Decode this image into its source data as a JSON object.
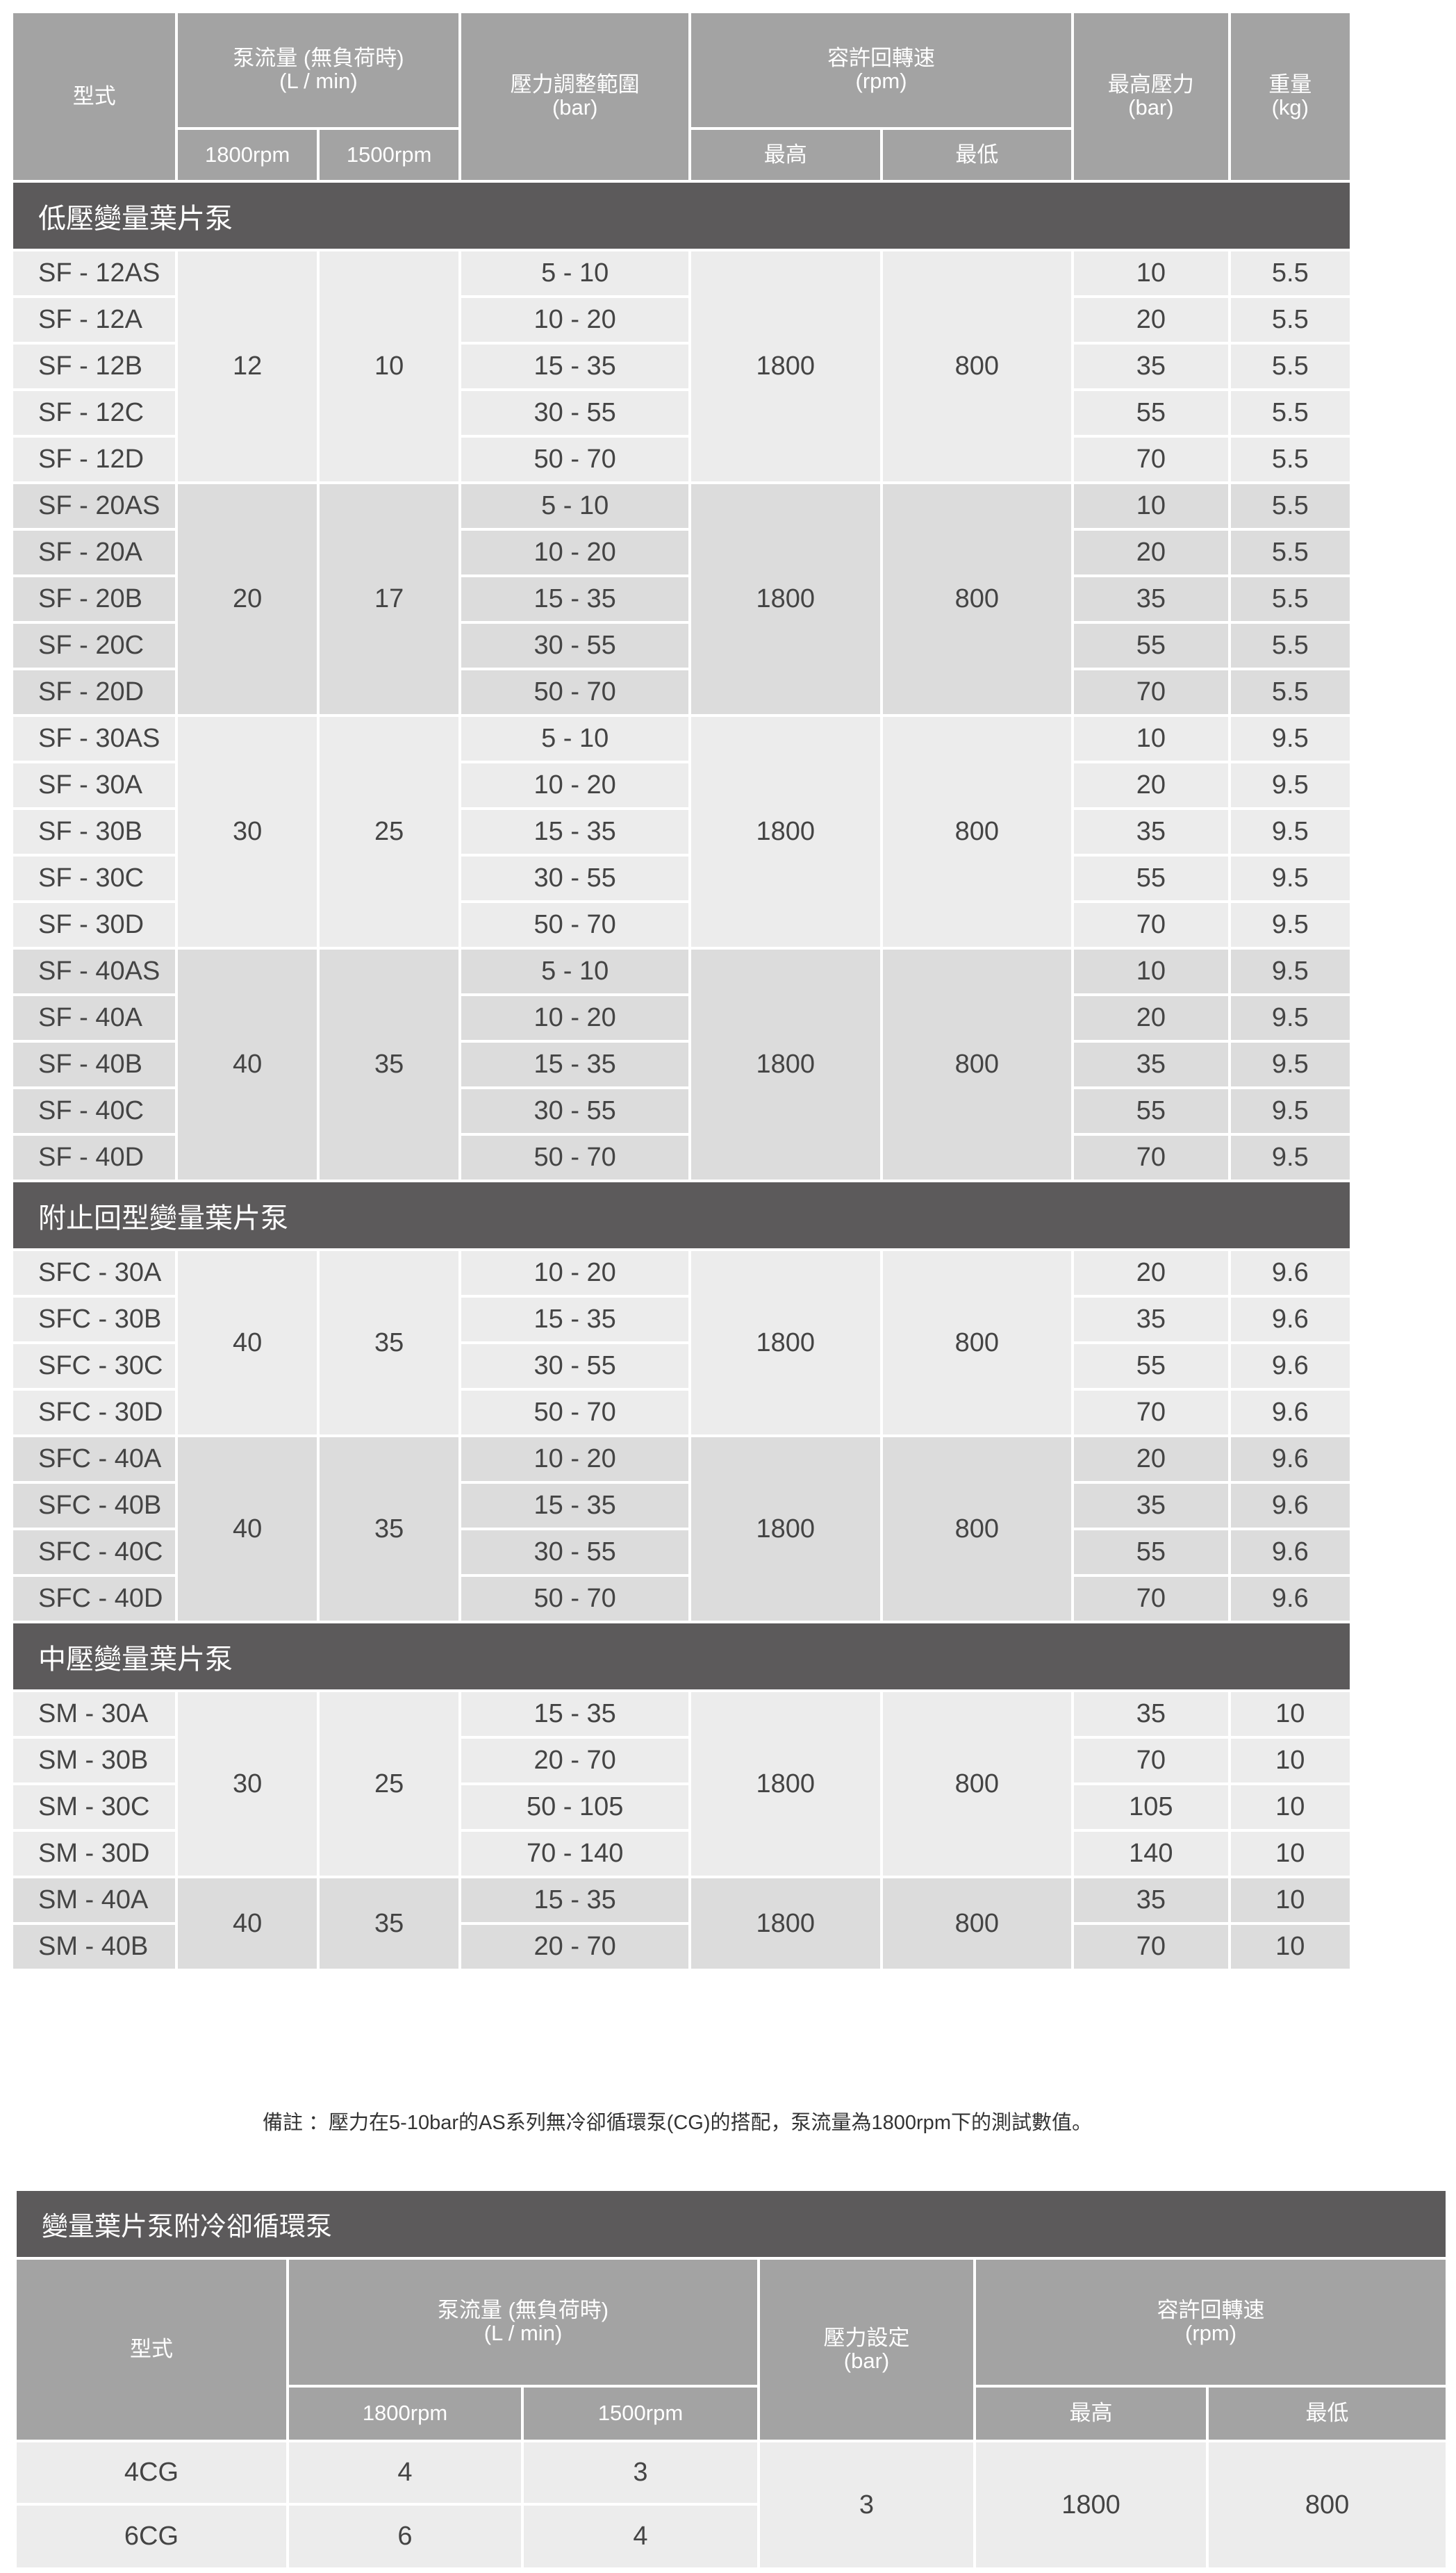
{
  "main_table": {
    "headers": {
      "model": "型式",
      "flow": "泵流量 (無負荷時)\n(L / min)",
      "flow_1800": "1800rpm",
      "flow_1500": "1500rpm",
      "pressure_range": "壓力調整範圍\n(bar)",
      "rpm": "容許回轉速\n(rpm)",
      "rpm_max": "最高",
      "rpm_min": "最低",
      "max_pressure": "最高壓力\n(bar)",
      "weight": "重量\n(kg)"
    },
    "sections": [
      {
        "title": "低壓變量葉片泵",
        "groups": [
          {
            "flow_1800": "12",
            "flow_1500": "10",
            "rpm_max": "1800",
            "rpm_min": "800",
            "rows": [
              {
                "model": "SF - 12AS",
                "range": "5 - 10",
                "max_pressure": "10",
                "weight": "5.5"
              },
              {
                "model": "SF - 12A",
                "range": "10 - 20",
                "max_pressure": "20",
                "weight": "5.5"
              },
              {
                "model": "SF - 12B",
                "range": "15 - 35",
                "max_pressure": "35",
                "weight": "5.5"
              },
              {
                "model": "SF - 12C",
                "range": "30 - 55",
                "max_pressure": "55",
                "weight": "5.5"
              },
              {
                "model": "SF - 12D",
                "range": "50 - 70",
                "max_pressure": "70",
                "weight": "5.5"
              }
            ]
          },
          {
            "flow_1800": "20",
            "flow_1500": "17",
            "rpm_max": "1800",
            "rpm_min": "800",
            "rows": [
              {
                "model": "SF - 20AS",
                "range": "5 - 10",
                "max_pressure": "10",
                "weight": "5.5"
              },
              {
                "model": "SF - 20A",
                "range": "10 - 20",
                "max_pressure": "20",
                "weight": "5.5"
              },
              {
                "model": "SF - 20B",
                "range": "15 - 35",
                "max_pressure": "35",
                "weight": "5.5"
              },
              {
                "model": "SF - 20C",
                "range": "30 - 55",
                "max_pressure": "55",
                "weight": "5.5"
              },
              {
                "model": "SF - 20D",
                "range": "50 - 70",
                "max_pressure": "70",
                "weight": "5.5"
              }
            ]
          },
          {
            "flow_1800": "30",
            "flow_1500": "25",
            "rpm_max": "1800",
            "rpm_min": "800",
            "rows": [
              {
                "model": "SF - 30AS",
                "range": "5 - 10",
                "max_pressure": "10",
                "weight": "9.5"
              },
              {
                "model": "SF - 30A",
                "range": "10 - 20",
                "max_pressure": "20",
                "weight": "9.5"
              },
              {
                "model": "SF - 30B",
                "range": "15 - 35",
                "max_pressure": "35",
                "weight": "9.5"
              },
              {
                "model": "SF - 30C",
                "range": "30 - 55",
                "max_pressure": "55",
                "weight": "9.5"
              },
              {
                "model": "SF - 30D",
                "range": "50 - 70",
                "max_pressure": "70",
                "weight": "9.5"
              }
            ]
          },
          {
            "flow_1800": "40",
            "flow_1500": "35",
            "rpm_max": "1800",
            "rpm_min": "800",
            "rows": [
              {
                "model": "SF - 40AS",
                "range": "5 - 10",
                "max_pressure": "10",
                "weight": "9.5"
              },
              {
                "model": "SF - 40A",
                "range": "10 - 20",
                "max_pressure": "20",
                "weight": "9.5"
              },
              {
                "model": "SF - 40B",
                "range": "15 - 35",
                "max_pressure": "35",
                "weight": "9.5"
              },
              {
                "model": "SF - 40C",
                "range": "30 - 55",
                "max_pressure": "55",
                "weight": "9.5"
              },
              {
                "model": "SF - 40D",
                "range": "50 - 70",
                "max_pressure": "70",
                "weight": "9.5"
              }
            ]
          }
        ]
      },
      {
        "title": "附止回型變量葉片泵",
        "groups": [
          {
            "flow_1800": "40",
            "flow_1500": "35",
            "rpm_max": "1800",
            "rpm_min": "800",
            "rows": [
              {
                "model": "SFC - 30A",
                "range": "10 - 20",
                "max_pressure": "20",
                "weight": "9.6"
              },
              {
                "model": "SFC - 30B",
                "range": "15 - 35",
                "max_pressure": "35",
                "weight": "9.6"
              },
              {
                "model": "SFC - 30C",
                "range": "30 - 55",
                "max_pressure": "55",
                "weight": "9.6"
              },
              {
                "model": "SFC - 30D",
                "range": "50 - 70",
                "max_pressure": "70",
                "weight": "9.6"
              }
            ]
          },
          {
            "flow_1800": "40",
            "flow_1500": "35",
            "rpm_max": "1800",
            "rpm_min": "800",
            "rows": [
              {
                "model": "SFC - 40A",
                "range": "10 - 20",
                "max_pressure": "20",
                "weight": "9.6"
              },
              {
                "model": "SFC - 40B",
                "range": "15 - 35",
                "max_pressure": "35",
                "weight": "9.6"
              },
              {
                "model": "SFC - 40C",
                "range": "30 - 55",
                "max_pressure": "55",
                "weight": "9.6"
              },
              {
                "model": "SFC - 40D",
                "range": "50 - 70",
                "max_pressure": "70",
                "weight": "9.6"
              }
            ]
          }
        ]
      },
      {
        "title": "中壓變量葉片泵",
        "groups": [
          {
            "flow_1800": "30",
            "flow_1500": "25",
            "rpm_max": "1800",
            "rpm_min": "800",
            "rows": [
              {
                "model": "SM - 30A",
                "range": "15 - 35",
                "max_pressure": "35",
                "weight": "10"
              },
              {
                "model": "SM - 30B",
                "range": "20 - 70",
                "max_pressure": "70",
                "weight": "10"
              },
              {
                "model": "SM - 30C",
                "range": "50 - 105",
                "max_pressure": "105",
                "weight": "10"
              },
              {
                "model": "SM - 30D",
                "range": "70 - 140",
                "max_pressure": "140",
                "weight": "10"
              }
            ]
          },
          {
            "flow_1800": "40",
            "flow_1500": "35",
            "rpm_max": "1800",
            "rpm_min": "800",
            "rows": [
              {
                "model": "SM - 40A",
                "range": "15 - 35",
                "max_pressure": "35",
                "weight": "10"
              },
              {
                "model": "SM - 40B",
                "range": "20 - 70",
                "max_pressure": "70",
                "weight": "10"
              }
            ]
          }
        ]
      }
    ]
  },
  "note": "備註 ：壓力在5-10bar的AS系列無冷卻循環泵(CG)的搭配，泵流量為1800rpm下的測試數值。",
  "cooling_table": {
    "title": "變量葉片泵附冷卻循環泵",
    "headers": {
      "model": "型式",
      "flow": "泵流量 (無負荷時)\n(L / min)",
      "flow_1800": "1800rpm",
      "flow_1500": "1500rpm",
      "pressure_setting": "壓力設定\n(bar)",
      "rpm": "容許回轉速\n(rpm)",
      "rpm_max": "最高",
      "rpm_min": "最低"
    },
    "pressure_setting": "3",
    "rpm_max": "1800",
    "rpm_min": "800",
    "rows": [
      {
        "model": "4CG",
        "flow_1800": "4",
        "flow_1500": "3"
      },
      {
        "model": "6CG",
        "flow_1800": "6",
        "flow_1500": "4"
      }
    ]
  },
  "colors": {
    "header_bg": "#a3a3a3",
    "section_bg": "#5c5a5b",
    "row_light": "#ececec",
    "row_dark": "#dcdcdc"
  }
}
